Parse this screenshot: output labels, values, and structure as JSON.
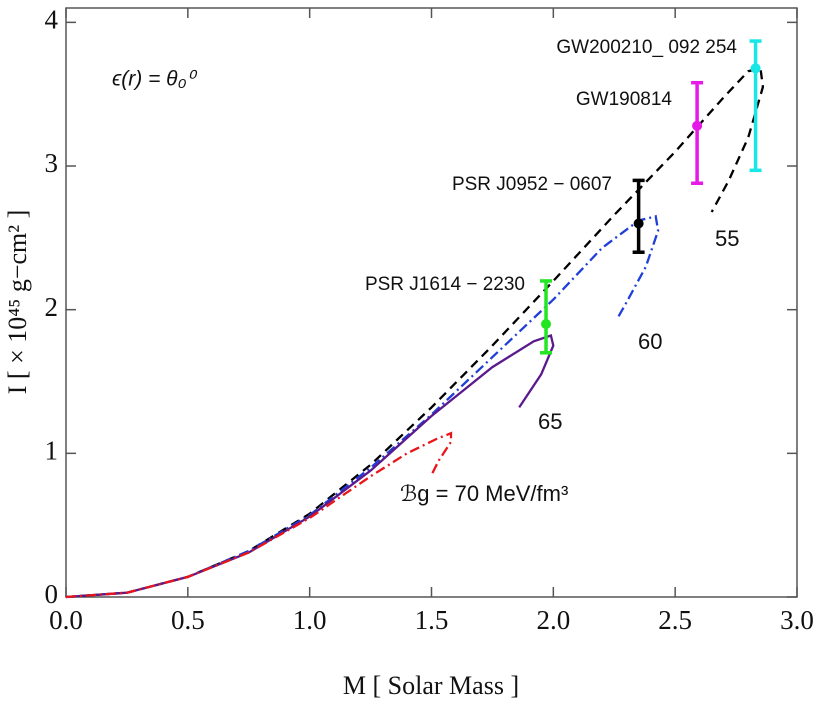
{
  "chart_data": {
    "type": "line",
    "xlabel": "M  [ Solar Mass ]",
    "ylabel": "I  [ × 10⁴⁵ g−cm² ]",
    "annotation": "ϵ(r) = θ₀⁰",
    "xlim": [
      0,
      3.0
    ],
    "ylim": [
      0,
      4.1
    ],
    "xticks": [
      {
        "value": 0,
        "label": "0.0"
      },
      {
        "value": 0.5,
        "label": "0.5"
      },
      {
        "value": 1,
        "label": "1.0"
      },
      {
        "value": 1.5,
        "label": "1.5"
      },
      {
        "value": 2,
        "label": "2.0"
      },
      {
        "value": 2.5,
        "label": "2.5"
      },
      {
        "value": 3,
        "label": "3.0"
      }
    ],
    "yticks": [
      0,
      1,
      2,
      3,
      4
    ],
    "series": [
      {
        "name": "55",
        "color": "#000000",
        "dash": "9,6",
        "x": [
          0,
          0.25,
          0.5,
          0.75,
          1.0,
          1.25,
          1.5,
          1.75,
          2.0,
          2.25,
          2.5,
          2.7,
          2.8,
          2.85,
          2.86,
          2.8,
          2.72,
          2.65
        ],
        "values": [
          0,
          0.03,
          0.14,
          0.32,
          0.58,
          0.92,
          1.32,
          1.75,
          2.2,
          2.66,
          3.1,
          3.48,
          3.66,
          3.68,
          3.55,
          3.2,
          2.9,
          2.68
        ]
      },
      {
        "name": "60",
        "color": "#1f3fd8",
        "dash": "10,4,2,4",
        "x": [
          0,
          0.25,
          0.5,
          0.75,
          1.0,
          1.25,
          1.5,
          1.75,
          2.0,
          2.2,
          2.35,
          2.42,
          2.43,
          2.38,
          2.3,
          2.26
        ],
        "values": [
          0,
          0.03,
          0.14,
          0.32,
          0.57,
          0.9,
          1.27,
          1.67,
          2.07,
          2.43,
          2.62,
          2.65,
          2.55,
          2.3,
          2.05,
          1.93
        ]
      },
      {
        "name": "65",
        "color": "#5b1a8c",
        "dash": "",
        "x": [
          0,
          0.25,
          0.5,
          0.75,
          1.0,
          1.25,
          1.5,
          1.75,
          1.92,
          1.99,
          2.0,
          1.95,
          1.86
        ],
        "values": [
          0,
          0.03,
          0.14,
          0.31,
          0.56,
          0.88,
          1.26,
          1.6,
          1.78,
          1.82,
          1.75,
          1.55,
          1.32
        ]
      },
      {
        "name": "ℬg = 70 MeV/fm³",
        "color": "#e8161a",
        "dash": "10,4,2,4",
        "x": [
          0,
          0.25,
          0.5,
          0.75,
          1.0,
          1.25,
          1.4,
          1.52,
          1.58,
          1.58,
          1.53,
          1.5
        ],
        "values": [
          0,
          0.03,
          0.14,
          0.31,
          0.55,
          0.84,
          1.0,
          1.1,
          1.14,
          1.08,
          0.95,
          0.85
        ]
      }
    ],
    "points": [
      {
        "name": "PSR  J1614 − 2230",
        "color": "#22e622",
        "x": 1.97,
        "y": 1.9,
        "ylow": 1.7,
        "yhigh": 2.2
      },
      {
        "name": "PSR  J0952 − 0607",
        "color": "#000000",
        "x": 2.35,
        "y": 2.6,
        "ylow": 2.4,
        "yhigh": 2.9
      },
      {
        "name": "GW190814",
        "color": "#e61ae6",
        "x": 2.59,
        "y": 3.28,
        "ylow": 2.88,
        "yhigh": 3.58
      },
      {
        "name": "GW200210_ 092 254",
        "color": "#19e6e6",
        "x": 2.83,
        "y": 3.68,
        "ylow": 2.97,
        "yhigh": 3.87
      }
    ]
  }
}
